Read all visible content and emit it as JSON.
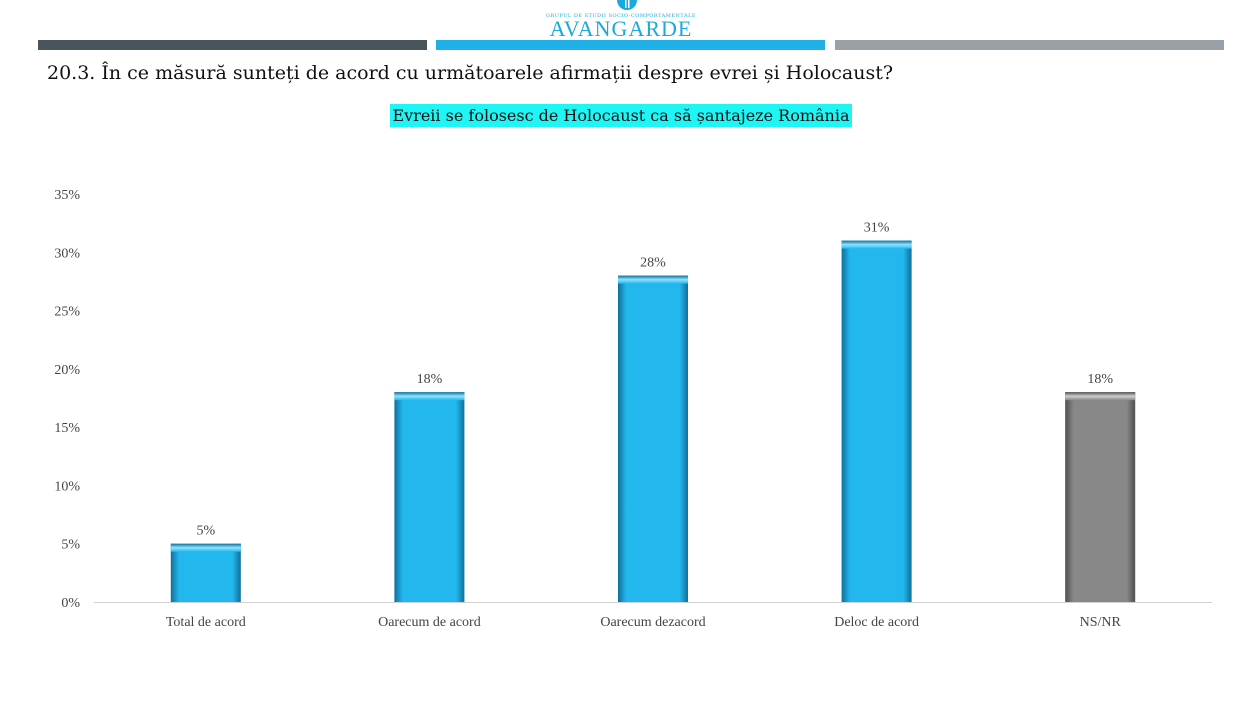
{
  "header": {
    "logo_tagline": "GRUPUL DE STUDII SOCIO-COMPORTAMENTALE",
    "logo_text": "AVANGARDE",
    "question": "20.3. În ce măsură sunteți de acord cu următoarele afirmații despre evrei și Holocaust?"
  },
  "colors": {
    "bar_primary": "#22b8ee",
    "bar_secondary": "#888888",
    "band_dark": "#4a555b",
    "band_blue": "#1eb0e6",
    "band_gray": "#9aa1a6",
    "subtitle_highlight": "#1ff5f5"
  },
  "chart_data": {
    "type": "bar",
    "title": "Evreii se folosesc de Holocaust ca să șantajeze România",
    "categories": [
      "Total de acord",
      "Oarecum de acord",
      "Oarecum dezacord",
      "Deloc de acord",
      "NS/NR"
    ],
    "values": [
      5,
      18,
      28,
      31,
      18
    ],
    "value_labels": [
      "5%",
      "18%",
      "28%",
      "31%",
      "18%"
    ],
    "bar_colors": [
      "#22b8ee",
      "#22b8ee",
      "#22b8ee",
      "#22b8ee",
      "#888888"
    ],
    "ylim": [
      0,
      35
    ],
    "yticks": [
      0,
      5,
      10,
      15,
      20,
      25,
      30,
      35
    ],
    "ytick_labels": [
      "0%",
      "5%",
      "10%",
      "15%",
      "20%",
      "25%",
      "30%",
      "35%"
    ],
    "grid": false,
    "legend": "none"
  }
}
